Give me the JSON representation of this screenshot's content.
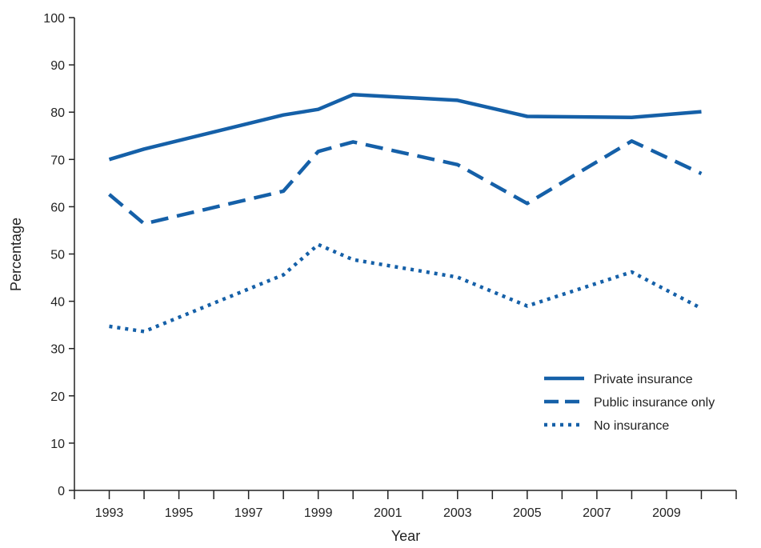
{
  "chart_data": {
    "type": "line",
    "xlabel": "Year",
    "ylabel": "Percentage",
    "xlim": [
      1992,
      2011
    ],
    "ylim": [
      0,
      100
    ],
    "x_ticks": [
      1993,
      1995,
      1997,
      1999,
      2001,
      2003,
      2005,
      2007,
      2009
    ],
    "y_ticks": [
      0,
      10,
      20,
      30,
      40,
      50,
      60,
      70,
      80,
      90,
      100
    ],
    "grid": false,
    "legend_position": "bottom-right",
    "series": [
      {
        "name": "Private insurance",
        "style": "solid",
        "color": "#1560A8",
        "points": [
          {
            "x": 1993,
            "y": 70
          },
          {
            "x": 1994,
            "y": 72.2
          },
          {
            "x": 1998,
            "y": 79.4
          },
          {
            "x": 1999,
            "y": 80.6
          },
          {
            "x": 2000,
            "y": 83.7
          },
          {
            "x": 2003,
            "y": 82.5
          },
          {
            "x": 2005,
            "y": 79.1
          },
          {
            "x": 2008,
            "y": 78.9
          },
          {
            "x": 2010,
            "y": 80.1
          }
        ]
      },
      {
        "name": "Public insurance only",
        "style": "dashed",
        "color": "#1560A8",
        "points": [
          {
            "x": 1993,
            "y": 62.6
          },
          {
            "x": 1994,
            "y": 56.4
          },
          {
            "x": 1998,
            "y": 63.3
          },
          {
            "x": 1999,
            "y": 71.7
          },
          {
            "x": 2000,
            "y": 73.7
          },
          {
            "x": 2003,
            "y": 68.9
          },
          {
            "x": 2005,
            "y": 60.7
          },
          {
            "x": 2008,
            "y": 73.9
          },
          {
            "x": 2010,
            "y": 67.0
          }
        ]
      },
      {
        "name": "No insurance",
        "style": "dotted",
        "color": "#1560A8",
        "points": [
          {
            "x": 1993,
            "y": 34.7
          },
          {
            "x": 1994,
            "y": 33.6
          },
          {
            "x": 1998,
            "y": 45.6
          },
          {
            "x": 1999,
            "y": 52.0
          },
          {
            "x": 2000,
            "y": 48.8
          },
          {
            "x": 2003,
            "y": 45.1
          },
          {
            "x": 2005,
            "y": 39.0
          },
          {
            "x": 2008,
            "y": 46.2
          },
          {
            "x": 2010,
            "y": 38.5
          }
        ]
      }
    ]
  }
}
